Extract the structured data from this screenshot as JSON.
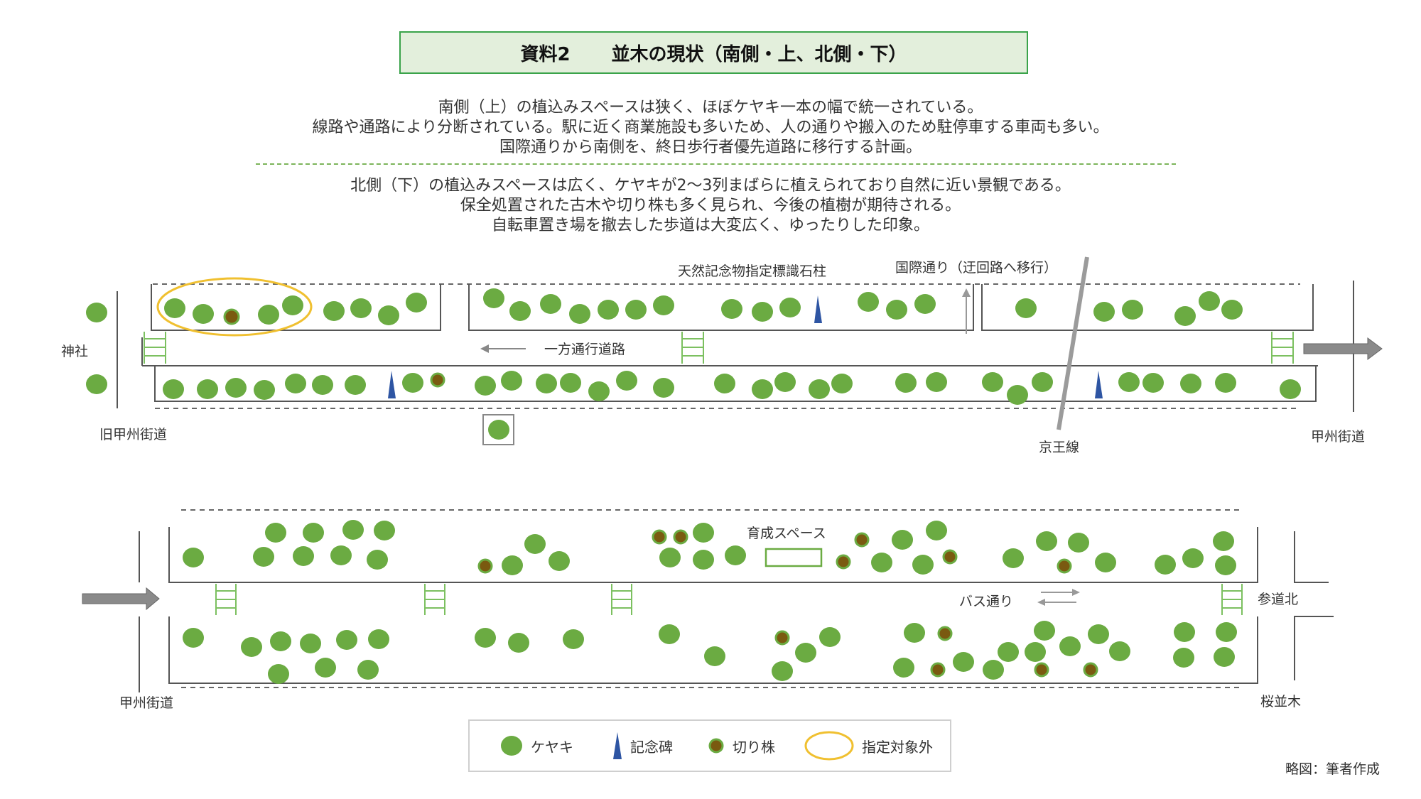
{
  "title": {
    "label": "資料2",
    "text": "並木の現状（南側・上、北側・下）"
  },
  "description_south": [
    "南側（上）の植込みスペースは狭く、ほぼケヤキ一本の幅で統一されている。",
    "線路や通路により分断されている。駅に近く商業施設も多いため、人の通りや搬入のため駐停車する車両も多い。",
    "国際通りから南側を、終日歩行者優先道路に移行する計画。"
  ],
  "description_north": [
    "北側（下）の植込みスペースは広く、ケヤキが2〜3列まばらに植えられており自然に近い景観である。",
    "保全処置された古木や切り株も多く見られ、今後の植樹が期待される。",
    "自転車置き場を撤去した歩道は大変広く、ゆったりした印象。"
  ],
  "top_map": {
    "labels": {
      "shrine": "神社",
      "old_koshu": "旧甲州街道",
      "one_way": "一方通行道路",
      "monument": "天然記念物指定標識石柱",
      "kokusai": "国際通り（迂回路へ移行）",
      "keio": "京王線",
      "koshu_right": "甲州街道"
    }
  },
  "bottom_map": {
    "labels": {
      "koshu_left": "甲州街道",
      "nursery": "育成スペース",
      "bus": "バス通り",
      "sando": "参道北",
      "sakura": "桜並木"
    }
  },
  "legend": {
    "zelkova": "ケヤキ",
    "monument": "記念碑",
    "stump": "切り株",
    "excluded": "指定対象外"
  },
  "credit": "略図：筆者作成",
  "colors": {
    "tree": "#6bab42",
    "stump_fill": "#7a5a10",
    "stump_ring": "#6bab42",
    "monument": "#2e55a3",
    "excluded_ring": "#f0c030",
    "crosswalk": "#7cc060",
    "title_bg": "#e3efdc",
    "title_border": "#3aa34a",
    "arrow": "#8a8a8a"
  }
}
